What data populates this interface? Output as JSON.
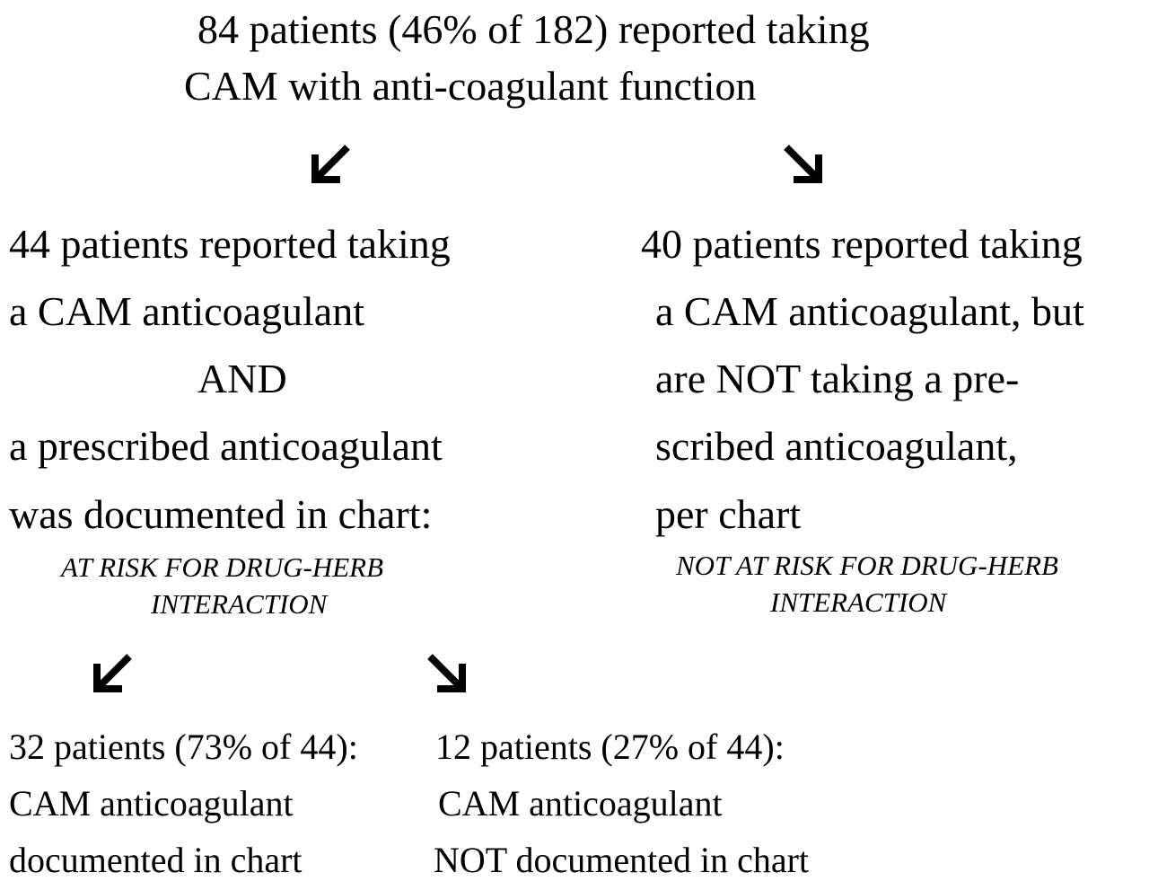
{
  "top": {
    "line1": "84 patients (46% of 182) reported taking",
    "line2": "CAM with anti-coagulant function"
  },
  "left_branch": {
    "line1": "44 patients reported taking",
    "line2": "a CAM anticoagulant",
    "line3": "AND",
    "line4": "a prescribed anticoagulant",
    "line5": "was documented in chart:",
    "note1": "AT RISK FOR DRUG-HERB",
    "note2": "INTERACTION"
  },
  "right_branch": {
    "line1": "40 patients reported taking",
    "line2": "a CAM anticoagulant, but",
    "line3": "are NOT taking a pre-",
    "line4": "scribed anticoagulant,",
    "line5": "per chart",
    "note1": "NOT AT RISK FOR DRUG-HERB",
    "note2": "INTERACTION"
  },
  "bottom_left": {
    "line1": "32 patients (73% of 44):",
    "line2": "CAM anticoagulant",
    "line3": "documented in chart"
  },
  "bottom_right": {
    "line1": "12 patients (27% of 44):",
    "line2": "CAM anticoagulant",
    "line3": "NOT documented in chart"
  },
  "arrows": {
    "down_left": "arrow-down-left-icon",
    "down_right": "arrow-down-right-icon"
  }
}
